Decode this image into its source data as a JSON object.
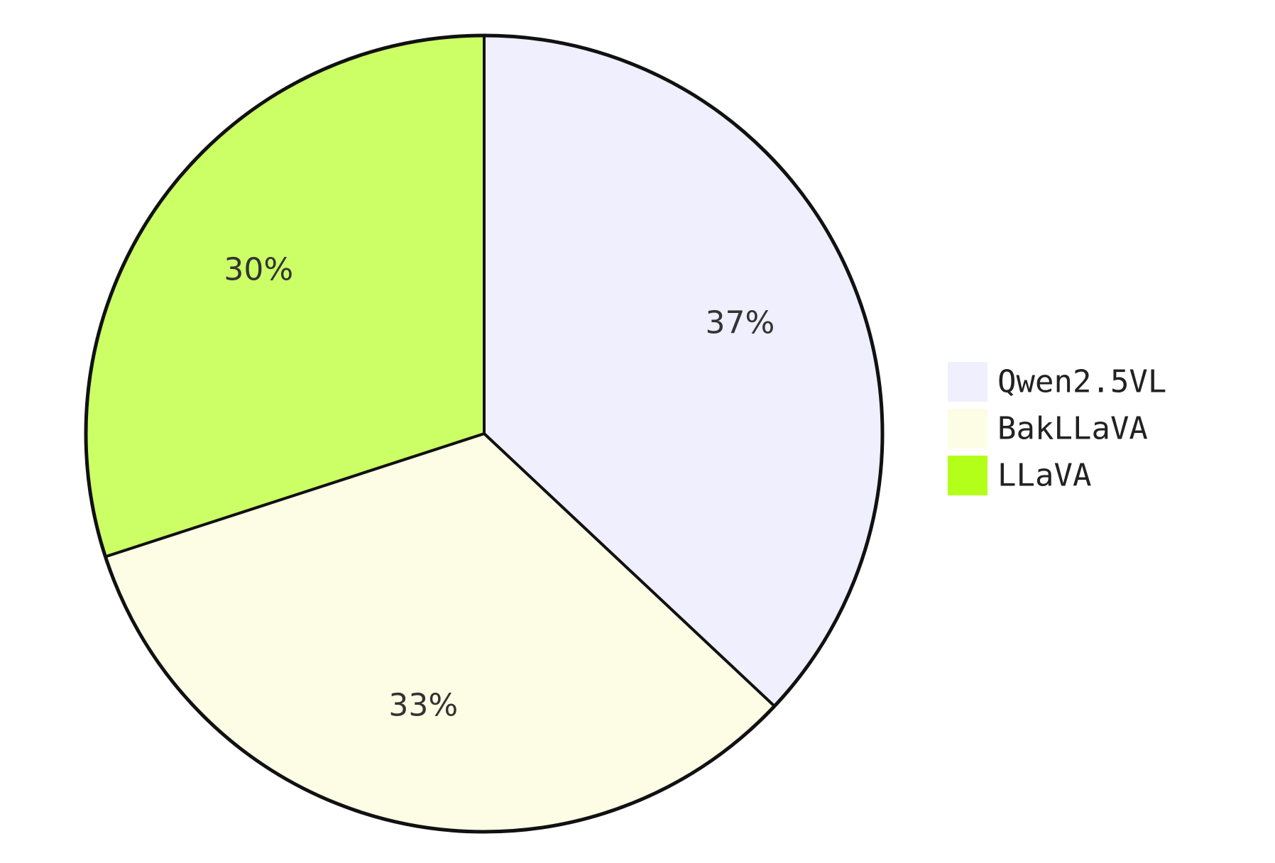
{
  "chart_data": {
    "type": "pie",
    "slices": [
      {
        "label": "Qwen2.5VL",
        "value": 37,
        "display": "37%",
        "color": "#efeffd"
      },
      {
        "label": "BakLLaVA",
        "value": 33,
        "display": "33%",
        "color": "#fdfde5"
      },
      {
        "label": "LLaVA",
        "value": 30,
        "display": "30%",
        "color": "#ccff66"
      }
    ],
    "legend": {
      "placement": "right",
      "entries": [
        {
          "label": "Qwen2.5VL",
          "color": "#efeffd"
        },
        {
          "label": "BakLLaVA",
          "color": "#fdfde5"
        },
        {
          "label": "LLaVA",
          "color": "#b3ff1a"
        }
      ]
    },
    "start": "12 o'clock",
    "direction": "clockwise",
    "outline_color": "#111111"
  }
}
